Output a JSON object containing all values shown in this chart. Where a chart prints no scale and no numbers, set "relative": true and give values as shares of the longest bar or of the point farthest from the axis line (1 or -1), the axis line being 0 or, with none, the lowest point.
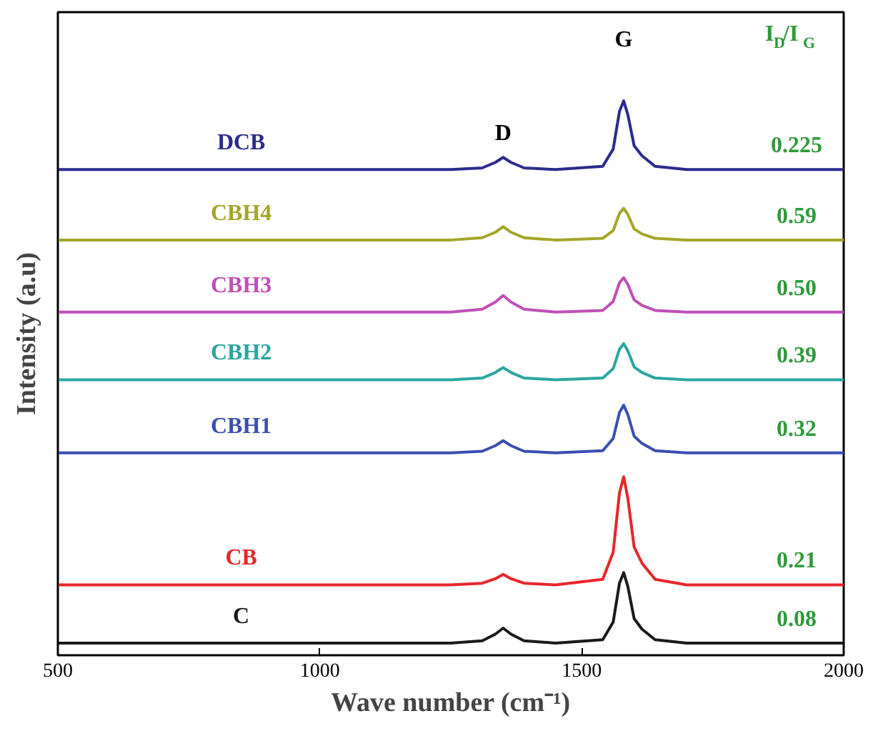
{
  "chart_data": {
    "type": "line",
    "relative": true,
    "xlabel": "Wave number (cm⁻¹)",
    "ylabel": "Intensity (a.u)",
    "xlim": [
      500,
      2000
    ],
    "xticks": [
      500,
      1000,
      1500,
      2000
    ],
    "tick_labels": "x",
    "grid": false,
    "marker": "none",
    "line_style": "solid",
    "x": [
      500,
      1250,
      1310,
      1335,
      1350,
      1365,
      1390,
      1450,
      1540,
      1560,
      1572,
      1580,
      1588,
      1600,
      1615,
      1640,
      1700,
      2000
    ],
    "series": [
      {
        "name": "C",
        "color": "#1a1a1a",
        "values": [
          0.022,
          0.022,
          0.026,
          0.038,
          0.049,
          0.038,
          0.026,
          0.022,
          0.028,
          0.06,
          0.13,
          0.149,
          0.124,
          0.066,
          0.047,
          0.028,
          0.022,
          0.022
        ]
      },
      {
        "name": "CB",
        "color": "#e8262a",
        "values": [
          0.127,
          0.127,
          0.13,
          0.138,
          0.146,
          0.138,
          0.13,
          0.127,
          0.137,
          0.186,
          0.293,
          0.322,
          0.283,
          0.195,
          0.166,
          0.137,
          0.127,
          0.127
        ]
      },
      {
        "name": "CBH1",
        "color": "#3a4fb0",
        "values": [
          0.365,
          0.365,
          0.368,
          0.378,
          0.387,
          0.378,
          0.368,
          0.365,
          0.369,
          0.391,
          0.438,
          0.451,
          0.434,
          0.395,
          0.382,
          0.369,
          0.365,
          0.365
        ]
      },
      {
        "name": "CBH2",
        "color": "#2aa6a0",
        "values": [
          0.497,
          0.497,
          0.5,
          0.51,
          0.519,
          0.51,
          0.5,
          0.497,
          0.5,
          0.517,
          0.552,
          0.562,
          0.549,
          0.52,
          0.51,
          0.5,
          0.497,
          0.497
        ]
      },
      {
        "name": "CBH3",
        "color": "#c04fb8",
        "values": [
          0.619,
          0.619,
          0.624,
          0.637,
          0.649,
          0.637,
          0.624,
          0.619,
          0.622,
          0.638,
          0.672,
          0.681,
          0.669,
          0.641,
          0.631,
          0.622,
          0.619,
          0.619
        ]
      },
      {
        "name": "CBH4",
        "color": "#a5a52a",
        "values": [
          0.749,
          0.749,
          0.753,
          0.763,
          0.773,
          0.763,
          0.753,
          0.749,
          0.752,
          0.766,
          0.797,
          0.806,
          0.795,
          0.769,
          0.76,
          0.752,
          0.749,
          0.749
        ]
      },
      {
        "name": "DCB",
        "color": "#2b2b8c",
        "values": [
          0.876,
          0.876,
          0.879,
          0.889,
          0.898,
          0.889,
          0.879,
          0.876,
          0.882,
          0.913,
          0.981,
          1.0,
          0.975,
          0.919,
          0.901,
          0.882,
          0.876,
          0.876
        ]
      }
    ],
    "annotations": [
      "D",
      "G",
      "I$_{D}$/I$_{G}$",
      "0.225",
      "0.59",
      "0.50",
      "0.39",
      "0.32",
      "0.21",
      "0.08"
    ]
  }
}
